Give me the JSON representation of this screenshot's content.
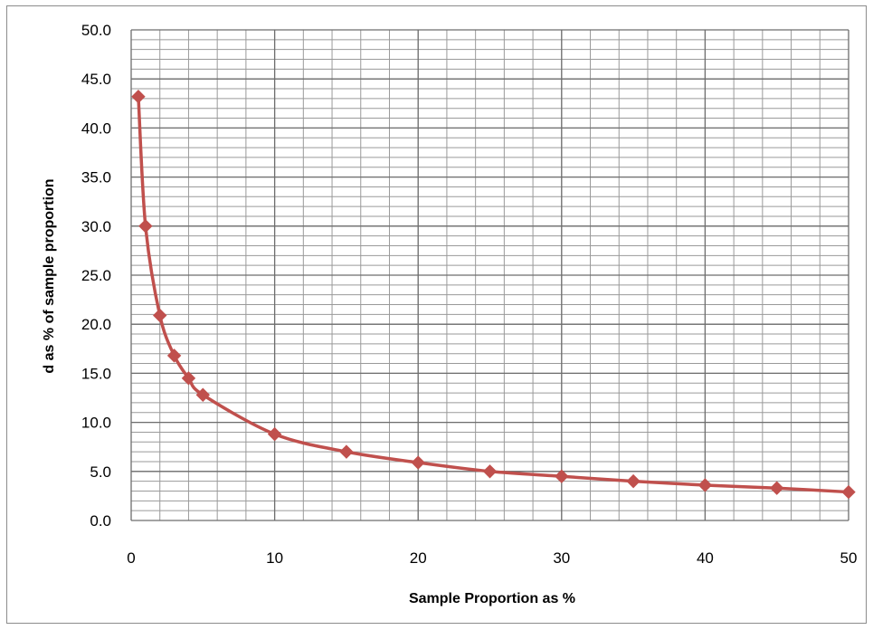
{
  "chart_data": {
    "type": "line",
    "title": "",
    "xlabel": "Sample Proportion as %",
    "ylabel": "d as % of sample proportion",
    "xlim": [
      0,
      50
    ],
    "ylim": [
      0,
      50
    ],
    "x_ticks": [
      "0",
      "10",
      "20",
      "30",
      "40",
      "50"
    ],
    "y_ticks": [
      "0.0",
      "5.0",
      "10.0",
      "15.0",
      "20.0",
      "25.0",
      "30.0",
      "35.0",
      "40.0",
      "45.0",
      "50.0"
    ],
    "grid": true,
    "legend": "none",
    "series": [
      {
        "color": "#c0504d",
        "marker": "diamond",
        "x": [
          0.5,
          1,
          2,
          3,
          4,
          5,
          10,
          15,
          20,
          25,
          30,
          35,
          40,
          45,
          50
        ],
        "y": [
          43.2,
          30.0,
          20.9,
          16.8,
          14.5,
          12.8,
          8.8,
          7.0,
          5.9,
          5.0,
          4.5,
          4.0,
          3.6,
          3.3,
          2.9
        ]
      }
    ]
  }
}
